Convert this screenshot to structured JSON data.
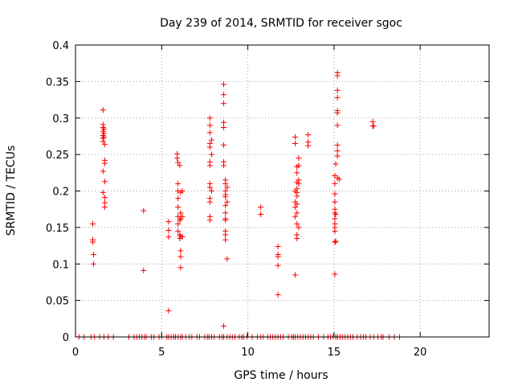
{
  "chart_data": {
    "type": "scatter",
    "title": "Day 239 of 2014, SRMTID for receiver sgoc",
    "xlabel": "GPS time / hours",
    "ylabel": "SRMTID / TECUs",
    "xlim": [
      0,
      24
    ],
    "ylim": [
      0,
      0.4
    ],
    "x_ticks": [
      0,
      5,
      10,
      15,
      20
    ],
    "x_tick_labels": [
      "0",
      "5",
      "10",
      "15",
      "20"
    ],
    "y_ticks": [
      0,
      0.05,
      0.1,
      0.15,
      0.2,
      0.25,
      0.3,
      0.35,
      0.4
    ],
    "y_tick_labels": [
      "0",
      "0.05",
      "0.1",
      "0.15",
      "0.2",
      "0.25",
      "0.3",
      "0.35",
      "0.4"
    ],
    "grid": true,
    "marker": "+",
    "color": "#ff0000",
    "series": [
      {
        "name": "SRMTID",
        "points": [
          [
            1.0,
            0.155
          ],
          [
            1.0,
            0.133
          ],
          [
            1.0,
            0.13
          ],
          [
            1.05,
            0.113
          ],
          [
            1.05,
            0.1
          ],
          [
            1.6,
            0.311
          ],
          [
            1.6,
            0.291
          ],
          [
            1.6,
            0.287
          ],
          [
            1.6,
            0.282
          ],
          [
            1.6,
            0.276
          ],
          [
            1.6,
            0.272
          ],
          [
            1.6,
            0.268
          ],
          [
            1.6,
            0.227
          ],
          [
            1.6,
            0.198
          ],
          [
            1.65,
            0.285
          ],
          [
            1.65,
            0.279
          ],
          [
            1.65,
            0.274
          ],
          [
            1.7,
            0.264
          ],
          [
            1.7,
            0.242
          ],
          [
            1.7,
            0.238
          ],
          [
            1.7,
            0.213
          ],
          [
            1.7,
            0.191
          ],
          [
            1.7,
            0.184
          ],
          [
            1.7,
            0.178
          ],
          [
            3.95,
            0.173
          ],
          [
            3.95,
            0.091
          ],
          [
            5.4,
            0.158
          ],
          [
            5.4,
            0.146
          ],
          [
            5.4,
            0.137
          ],
          [
            5.4,
            0.036
          ],
          [
            5.9,
            0.251
          ],
          [
            5.9,
            0.245
          ],
          [
            5.95,
            0.239
          ],
          [
            5.95,
            0.21
          ],
          [
            5.95,
            0.2
          ],
          [
            5.95,
            0.19
          ],
          [
            5.95,
            0.178
          ],
          [
            5.95,
            0.165
          ],
          [
            5.95,
            0.155
          ],
          [
            5.95,
            0.145
          ],
          [
            6.05,
            0.235
          ],
          [
            6.05,
            0.16
          ],
          [
            6.05,
            0.14
          ],
          [
            6.05,
            0.135
          ],
          [
            6.1,
            0.198
          ],
          [
            6.1,
            0.17
          ],
          [
            6.1,
            0.162
          ],
          [
            6.1,
            0.138
          ],
          [
            6.1,
            0.118
          ],
          [
            6.1,
            0.11
          ],
          [
            6.1,
            0.095
          ],
          [
            6.2,
            0.2
          ],
          [
            6.2,
            0.165
          ],
          [
            6.2,
            0.137
          ],
          [
            7.8,
            0.3
          ],
          [
            7.8,
            0.29
          ],
          [
            7.8,
            0.28
          ],
          [
            7.8,
            0.265
          ],
          [
            7.8,
            0.26
          ],
          [
            7.8,
            0.24
          ],
          [
            7.8,
            0.235
          ],
          [
            7.8,
            0.21
          ],
          [
            7.8,
            0.205
          ],
          [
            7.8,
            0.19
          ],
          [
            7.8,
            0.185
          ],
          [
            7.8,
            0.165
          ],
          [
            7.8,
            0.16
          ],
          [
            7.9,
            0.27
          ],
          [
            7.9,
            0.25
          ],
          [
            7.9,
            0.2
          ],
          [
            8.6,
            0.346
          ],
          [
            8.6,
            0.332
          ],
          [
            8.6,
            0.32
          ],
          [
            8.6,
            0.294
          ],
          [
            8.6,
            0.287
          ],
          [
            8.6,
            0.263
          ],
          [
            8.6,
            0.24
          ],
          [
            8.6,
            0.235
          ],
          [
            8.6,
            0.015
          ],
          [
            8.7,
            0.215
          ],
          [
            8.7,
            0.21
          ],
          [
            8.7,
            0.2
          ],
          [
            8.7,
            0.195
          ],
          [
            8.7,
            0.192
          ],
          [
            8.7,
            0.18
          ],
          [
            8.7,
            0.17
          ],
          [
            8.7,
            0.162
          ],
          [
            8.7,
            0.16
          ],
          [
            8.7,
            0.145
          ],
          [
            8.7,
            0.14
          ],
          [
            8.7,
            0.133
          ],
          [
            8.8,
            0.107
          ],
          [
            8.8,
            0.205
          ],
          [
            8.8,
            0.185
          ],
          [
            10.75,
            0.178
          ],
          [
            10.75,
            0.168
          ],
          [
            11.75,
            0.124
          ],
          [
            11.75,
            0.113
          ],
          [
            11.75,
            0.11
          ],
          [
            11.75,
            0.098
          ],
          [
            11.75,
            0.058
          ],
          [
            12.75,
            0.274
          ],
          [
            12.75,
            0.265
          ],
          [
            12.75,
            0.2
          ],
          [
            12.75,
            0.185
          ],
          [
            12.75,
            0.178
          ],
          [
            12.75,
            0.165
          ],
          [
            12.75,
            0.085
          ],
          [
            12.85,
            0.233
          ],
          [
            12.85,
            0.225
          ],
          [
            12.85,
            0.212
          ],
          [
            12.85,
            0.203
          ],
          [
            12.85,
            0.198
          ],
          [
            12.85,
            0.193
          ],
          [
            12.85,
            0.182
          ],
          [
            12.85,
            0.17
          ],
          [
            12.85,
            0.155
          ],
          [
            12.85,
            0.14
          ],
          [
            12.85,
            0.135
          ],
          [
            12.95,
            0.245
          ],
          [
            12.95,
            0.235
          ],
          [
            12.95,
            0.215
          ],
          [
            12.95,
            0.21
          ],
          [
            12.95,
            0.15
          ],
          [
            13.5,
            0.277
          ],
          [
            13.5,
            0.267
          ],
          [
            13.5,
            0.262
          ],
          [
            15.05,
            0.221
          ],
          [
            15.05,
            0.21
          ],
          [
            15.05,
            0.196
          ],
          [
            15.05,
            0.185
          ],
          [
            15.05,
            0.175
          ],
          [
            15.05,
            0.17
          ],
          [
            15.05,
            0.162
          ],
          [
            15.05,
            0.155
          ],
          [
            15.05,
            0.15
          ],
          [
            15.05,
            0.145
          ],
          [
            15.05,
            0.13
          ],
          [
            15.05,
            0.086
          ],
          [
            15.1,
            0.237
          ],
          [
            15.1,
            0.168
          ],
          [
            15.1,
            0.131
          ],
          [
            15.2,
            0.362
          ],
          [
            15.2,
            0.358
          ],
          [
            15.2,
            0.338
          ],
          [
            15.2,
            0.328
          ],
          [
            15.2,
            0.31
          ],
          [
            15.2,
            0.307
          ],
          [
            15.2,
            0.29
          ],
          [
            15.2,
            0.263
          ],
          [
            15.2,
            0.255
          ],
          [
            15.2,
            0.248
          ],
          [
            15.2,
            0.218
          ],
          [
            15.3,
            0.216
          ],
          [
            17.25,
            0.295
          ],
          [
            17.25,
            0.289
          ],
          [
            17.3,
            0.289
          ],
          [
            0.2,
            0
          ],
          [
            0.5,
            0
          ],
          [
            0.9,
            0
          ],
          [
            1.1,
            0
          ],
          [
            1.4,
            0
          ],
          [
            1.65,
            0
          ],
          [
            1.9,
            0
          ],
          [
            2.2,
            0
          ],
          [
            3.1,
            0
          ],
          [
            3.4,
            0
          ],
          [
            3.55,
            0
          ],
          [
            3.7,
            0
          ],
          [
            3.85,
            0
          ],
          [
            4.0,
            0
          ],
          [
            4.1,
            0
          ],
          [
            4.4,
            0
          ],
          [
            4.55,
            0
          ],
          [
            4.85,
            0
          ],
          [
            5.0,
            0
          ],
          [
            5.3,
            0
          ],
          [
            5.4,
            0
          ],
          [
            5.55,
            0
          ],
          [
            5.7,
            0
          ],
          [
            5.8,
            0
          ],
          [
            5.95,
            0
          ],
          [
            6.1,
            0
          ],
          [
            6.2,
            0
          ],
          [
            6.4,
            0
          ],
          [
            6.6,
            0
          ],
          [
            6.75,
            0
          ],
          [
            7.05,
            0
          ],
          [
            7.2,
            0
          ],
          [
            7.5,
            0
          ],
          [
            7.65,
            0
          ],
          [
            7.75,
            0
          ],
          [
            7.9,
            0
          ],
          [
            8.05,
            0
          ],
          [
            8.35,
            0
          ],
          [
            8.5,
            0
          ],
          [
            8.6,
            0
          ],
          [
            8.8,
            0
          ],
          [
            8.95,
            0
          ],
          [
            9.1,
            0
          ],
          [
            9.25,
            0
          ],
          [
            9.5,
            0
          ],
          [
            9.65,
            0
          ],
          [
            9.75,
            0
          ],
          [
            9.95,
            0
          ],
          [
            10.25,
            0
          ],
          [
            10.55,
            0
          ],
          [
            10.75,
            0
          ],
          [
            10.9,
            0
          ],
          [
            11.15,
            0
          ],
          [
            11.3,
            0
          ],
          [
            11.45,
            0
          ],
          [
            11.6,
            0
          ],
          [
            11.75,
            0
          ],
          [
            11.9,
            0
          ],
          [
            12.05,
            0
          ],
          [
            12.35,
            0
          ],
          [
            12.55,
            0
          ],
          [
            12.65,
            0
          ],
          [
            12.75,
            0
          ],
          [
            12.9,
            0
          ],
          [
            13.05,
            0
          ],
          [
            13.2,
            0
          ],
          [
            13.35,
            0
          ],
          [
            13.5,
            0
          ],
          [
            13.65,
            0
          ],
          [
            13.8,
            0
          ],
          [
            14.1,
            0
          ],
          [
            14.4,
            0
          ],
          [
            14.65,
            0
          ],
          [
            14.8,
            0
          ],
          [
            14.95,
            0
          ],
          [
            15.1,
            0
          ],
          [
            15.2,
            0
          ],
          [
            15.35,
            0
          ],
          [
            15.5,
            0
          ],
          [
            15.65,
            0
          ],
          [
            15.8,
            0
          ],
          [
            15.95,
            0
          ],
          [
            16.1,
            0
          ],
          [
            16.35,
            0
          ],
          [
            16.55,
            0
          ],
          [
            16.7,
            0
          ],
          [
            16.85,
            0
          ],
          [
            17.1,
            0
          ],
          [
            17.3,
            0
          ],
          [
            17.55,
            0
          ],
          [
            17.75,
            0
          ],
          [
            17.85,
            0
          ],
          [
            18.2,
            0
          ],
          [
            18.5,
            0
          ],
          [
            18.8,
            0
          ]
        ]
      }
    ]
  }
}
